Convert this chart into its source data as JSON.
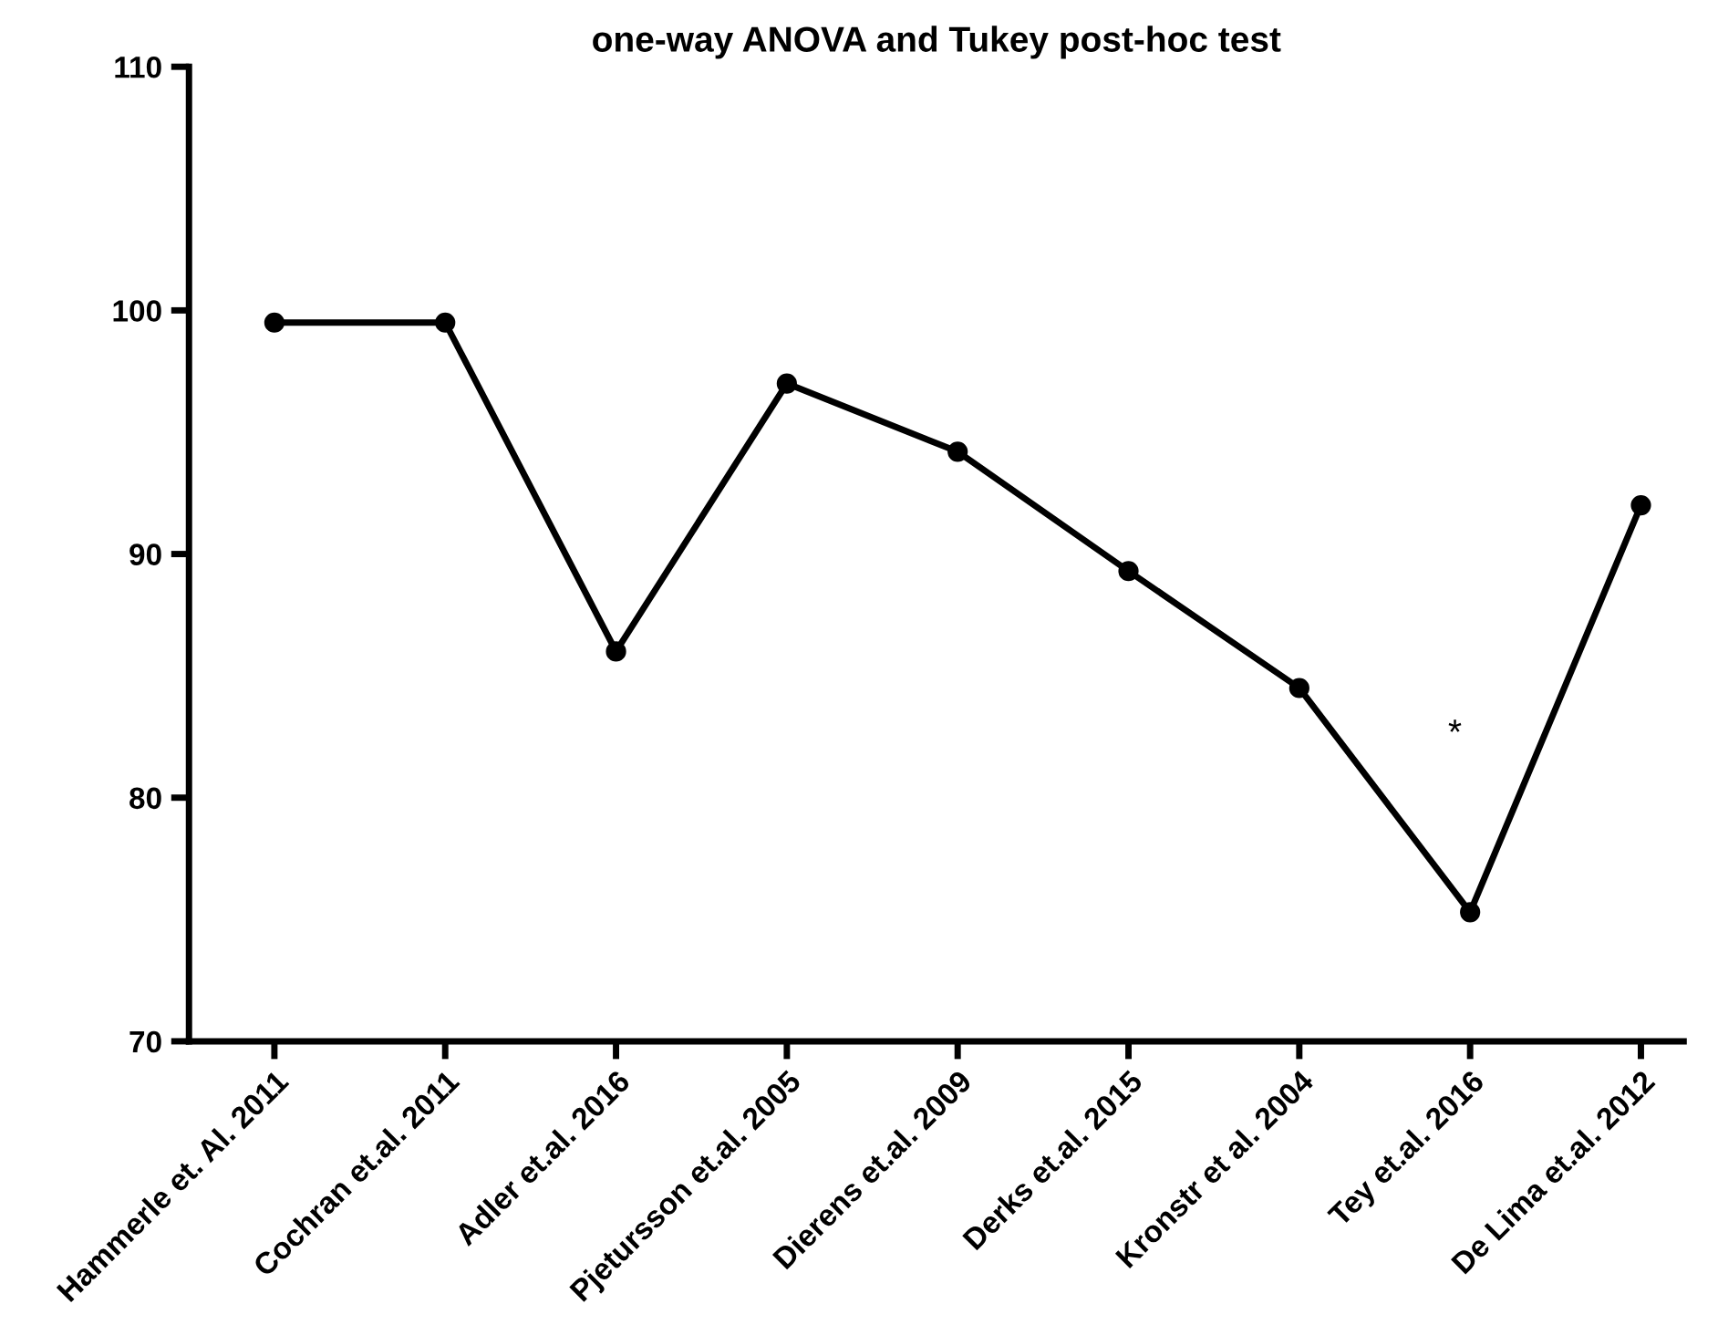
{
  "chart_data": {
    "type": "line",
    "title": "one-way ANOVA and Tukey post-hoc test",
    "categories": [
      "Hammerle et. Al. 2011",
      "Cochran et.al. 2011",
      "Adler et.al. 2016",
      "Pjetursson et.al. 2005",
      "Dierens et.al. 2009",
      "Derks et.al. 2015",
      "Kronstr et al. 2004",
      "Tey et.al. 2016",
      "De Lima et.al. 2012"
    ],
    "series": [
      {
        "color": "#000000",
        "values": [
          99.5,
          99.5,
          86.0,
          97.0,
          94.2,
          89.3,
          84.5,
          75.3,
          92.0
        ]
      }
    ],
    "ylim": [
      70,
      110
    ],
    "yticks": [
      70,
      80,
      90,
      100,
      110
    ],
    "annotations": [
      "*"
    ],
    "marker": "circle",
    "line_style": "solid",
    "grid": false,
    "legend": false
  }
}
